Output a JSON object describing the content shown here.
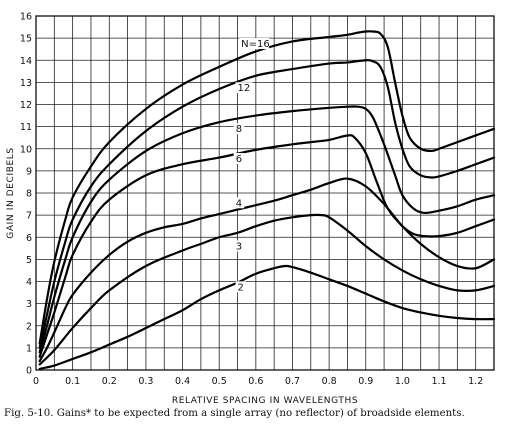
{
  "caption": "Fig. 5-10. Gains* to be expected from a single array (no reflector) of broadside elements.",
  "chart_data": {
    "type": "line",
    "title": "",
    "xlabel": "RELATIVE SPACING IN WAVELENGTHS",
    "ylabel": "GAIN IN DECIBELS",
    "xlim": [
      0,
      1.25
    ],
    "ylim": [
      0,
      16
    ],
    "x_ticks": [
      0,
      0.1,
      0.2,
      0.3,
      0.4,
      0.5,
      0.6,
      0.7,
      0.8,
      0.9,
      1.0,
      1.1,
      1.2
    ],
    "x_tick_labels": [
      "0",
      "0.1",
      "0.2",
      "0.3",
      "0.4",
      "0.5",
      "0.6",
      "0.7",
      "0.8",
      "0.9",
      "1.0",
      "1.1",
      "1.2"
    ],
    "y_ticks": [
      0,
      1,
      2,
      3,
      4,
      5,
      6,
      7,
      8,
      9,
      10,
      11,
      12,
      13,
      14,
      15,
      16
    ],
    "grid": true,
    "grid_x_step": 0.05,
    "grid_y_step": 1,
    "series": [
      {
        "name": "N=16",
        "label_at": [
          0.56,
          14.6
        ],
        "x": [
          0.01,
          0.03,
          0.05,
          0.08,
          0.1,
          0.15,
          0.2,
          0.3,
          0.4,
          0.5,
          0.6,
          0.7,
          0.8,
          0.85,
          0.88,
          0.9,
          0.92,
          0.94,
          0.96,
          0.98,
          1.0,
          1.02,
          1.05,
          1.08,
          1.1,
          1.15,
          1.2,
          1.25
        ],
        "values": [
          1.2,
          3.2,
          4.9,
          6.8,
          7.8,
          9.2,
          10.3,
          11.8,
          12.9,
          13.7,
          14.4,
          14.85,
          15.05,
          15.15,
          15.25,
          15.3,
          15.3,
          15.2,
          14.6,
          13.0,
          11.5,
          10.5,
          10.0,
          9.9,
          10.0,
          10.3,
          10.6,
          10.9
        ]
      },
      {
        "name": "12",
        "label_at": [
          0.55,
          12.6
        ],
        "x": [
          0.01,
          0.03,
          0.05,
          0.08,
          0.1,
          0.15,
          0.2,
          0.3,
          0.4,
          0.5,
          0.6,
          0.7,
          0.8,
          0.85,
          0.9,
          0.92,
          0.94,
          0.96,
          0.98,
          1.0,
          1.02,
          1.05,
          1.08,
          1.1,
          1.15,
          1.2,
          1.25
        ],
        "values": [
          1.0,
          2.5,
          4.0,
          5.8,
          6.8,
          8.3,
          9.3,
          10.8,
          11.9,
          12.7,
          13.3,
          13.6,
          13.85,
          13.9,
          14.0,
          13.95,
          13.7,
          12.8,
          11.2,
          10.0,
          9.2,
          8.8,
          8.7,
          8.75,
          9.0,
          9.3,
          9.6
        ]
      },
      {
        "name": "8",
        "label_at": [
          0.545,
          10.75
        ],
        "x": [
          0.01,
          0.03,
          0.05,
          0.08,
          0.1,
          0.15,
          0.2,
          0.3,
          0.4,
          0.5,
          0.6,
          0.7,
          0.8,
          0.85,
          0.88,
          0.9,
          0.92,
          0.95,
          0.98,
          1.0,
          1.03,
          1.06,
          1.1,
          1.15,
          1.2,
          1.25
        ],
        "values": [
          0.8,
          2.0,
          3.3,
          5.0,
          6.0,
          7.6,
          8.6,
          9.9,
          10.7,
          11.2,
          11.5,
          11.7,
          11.85,
          11.9,
          11.9,
          11.8,
          11.4,
          10.2,
          8.8,
          7.9,
          7.3,
          7.1,
          7.2,
          7.4,
          7.7,
          7.9
        ]
      },
      {
        "name": "6",
        "label_at": [
          0.545,
          9.4
        ],
        "x": [
          0.01,
          0.03,
          0.05,
          0.08,
          0.1,
          0.15,
          0.2,
          0.3,
          0.4,
          0.5,
          0.6,
          0.7,
          0.75,
          0.8,
          0.85,
          0.87,
          0.9,
          0.93,
          0.96,
          1.0,
          1.03,
          1.06,
          1.1,
          1.15,
          1.2,
          1.25
        ],
        "values": [
          0.6,
          1.6,
          2.6,
          4.2,
          5.2,
          6.7,
          7.7,
          8.8,
          9.3,
          9.6,
          9.95,
          10.2,
          10.3,
          10.4,
          10.6,
          10.5,
          9.8,
          8.5,
          7.3,
          6.5,
          6.15,
          6.05,
          6.05,
          6.2,
          6.5,
          6.8
        ]
      },
      {
        "name": "4",
        "label_at": [
          0.545,
          7.4
        ],
        "x": [
          0.01,
          0.03,
          0.05,
          0.08,
          0.1,
          0.15,
          0.2,
          0.25,
          0.3,
          0.35,
          0.4,
          0.45,
          0.5,
          0.55,
          0.6,
          0.65,
          0.7,
          0.75,
          0.8,
          0.85,
          0.9,
          0.95,
          1.0,
          1.05,
          1.1,
          1.15,
          1.2,
          1.25
        ],
        "values": [
          0.4,
          1.0,
          1.7,
          2.8,
          3.4,
          4.4,
          5.2,
          5.8,
          6.2,
          6.45,
          6.6,
          6.85,
          7.05,
          7.25,
          7.45,
          7.65,
          7.9,
          8.15,
          8.45,
          8.65,
          8.3,
          7.5,
          6.5,
          5.7,
          5.1,
          4.7,
          4.6,
          5.0
        ]
      },
      {
        "name": "3",
        "label_at": [
          0.545,
          5.45
        ],
        "x": [
          0.01,
          0.05,
          0.1,
          0.15,
          0.2,
          0.3,
          0.4,
          0.45,
          0.5,
          0.55,
          0.6,
          0.65,
          0.7,
          0.75,
          0.78,
          0.8,
          0.85,
          0.9,
          0.95,
          1.0,
          1.05,
          1.1,
          1.15,
          1.2,
          1.25
        ],
        "values": [
          0.25,
          0.9,
          1.9,
          2.8,
          3.6,
          4.7,
          5.4,
          5.7,
          6.0,
          6.2,
          6.5,
          6.75,
          6.9,
          7.0,
          7.0,
          6.9,
          6.3,
          5.6,
          5.0,
          4.5,
          4.1,
          3.8,
          3.6,
          3.6,
          3.8
        ]
      },
      {
        "name": "2",
        "label_at": [
          0.55,
          3.6
        ],
        "x": [
          0.01,
          0.05,
          0.1,
          0.15,
          0.2,
          0.25,
          0.3,
          0.35,
          0.4,
          0.45,
          0.5,
          0.55,
          0.6,
          0.65,
          0.68,
          0.7,
          0.75,
          0.8,
          0.85,
          0.9,
          0.95,
          1.0,
          1.05,
          1.1,
          1.15,
          1.2,
          1.25
        ],
        "values": [
          0.05,
          0.2,
          0.5,
          0.8,
          1.15,
          1.5,
          1.9,
          2.3,
          2.7,
          3.2,
          3.6,
          3.95,
          4.35,
          4.6,
          4.7,
          4.65,
          4.4,
          4.1,
          3.8,
          3.45,
          3.1,
          2.8,
          2.6,
          2.45,
          2.35,
          2.3,
          2.3
        ]
      }
    ]
  }
}
